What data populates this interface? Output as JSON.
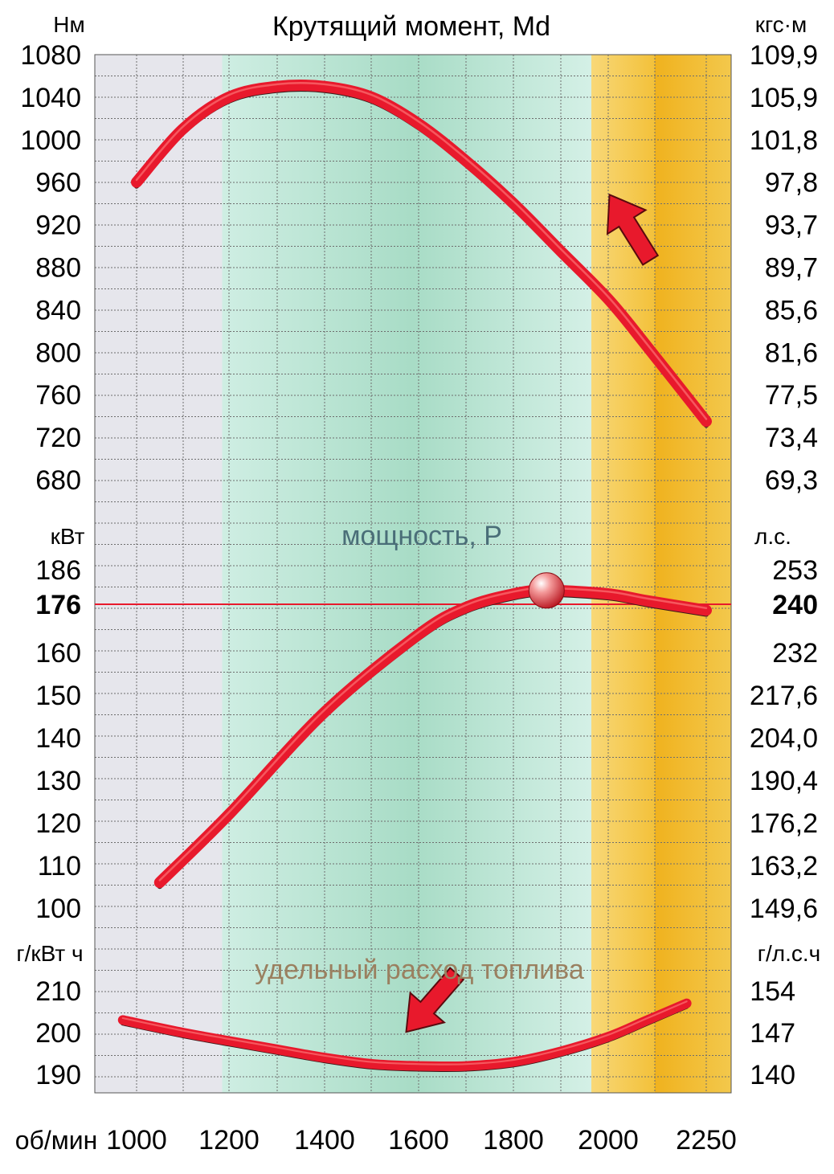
{
  "chart_data": [
    {
      "type": "line",
      "title": "Крутящий момент, Md",
      "ylabel_left": "Нм",
      "ylabel_right": "кгс·м",
      "y_ticks_left": [
        "1080",
        "1040",
        "1000",
        "960",
        "920",
        "880",
        "840",
        "800",
        "760",
        "720",
        "680"
      ],
      "y_ticks_right": [
        "109,9",
        "105,9",
        "101,8",
        "97,8",
        "93,7",
        "89,7",
        "85,6",
        "81,6",
        "77,5",
        "73,4",
        "69,3"
      ],
      "ylim": [
        680,
        1080
      ],
      "x": [
        1000,
        1100,
        1200,
        1300,
        1400,
        1500,
        1600,
        1700,
        1800,
        1900,
        2000,
        2100,
        2250
      ],
      "values": [
        960,
        1010,
        1040,
        1050,
        1050,
        1040,
        1015,
        980,
        940,
        895,
        850,
        805,
        735
      ]
    },
    {
      "type": "line",
      "title": "мощность, P",
      "ylabel_left": "кВт",
      "ylabel_right": "л.с.",
      "y_ticks_left": [
        "186",
        "176",
        "160",
        "150",
        "140",
        "130",
        "120",
        "110",
        "100"
      ],
      "y_ticks_right": [
        "253",
        "240",
        "232",
        "217,6",
        "204,0",
        "190,4",
        "176,2",
        "163,2",
        "149,6"
      ],
      "highlight": {
        "left": "176",
        "right": "240"
      },
      "x": [
        1050,
        1200,
        1400,
        1600,
        1700,
        1800,
        1870,
        2000,
        2100,
        2250
      ],
      "values": [
        106,
        122,
        146,
        166,
        175,
        179,
        180,
        179,
        177,
        174
      ],
      "marker": {
        "x": 1870,
        "y": 180
      }
    },
    {
      "type": "line",
      "title": "удельный расход топлива",
      "ylabel_left": "г/кВт ч",
      "ylabel_right": "г/л.с.ч",
      "y_ticks_left": [
        "210",
        "200",
        "190"
      ],
      "y_ticks_right": [
        "154",
        "147",
        "140"
      ],
      "ylim": [
        190,
        210
      ],
      "x": [
        970,
        1100,
        1200,
        1300,
        1400,
        1500,
        1600,
        1700,
        1800,
        1900,
        2000,
        2100,
        2200
      ],
      "values": [
        203,
        200,
        198,
        196,
        194,
        192.5,
        192,
        192,
        193,
        195.5,
        199,
        203,
        207
      ]
    }
  ],
  "x_axis": {
    "label": "об/мин",
    "ticks": [
      "1000",
      "1200",
      "1400",
      "1600",
      "1800",
      "2000",
      "2250"
    ]
  },
  "colors": {
    "curve": "#e8192c",
    "curve_edge": "#3a1a1a",
    "highlight_line": "#e8192c",
    "grid": "#6e6e6e",
    "band_gray": "#e4e4ea",
    "band_green": "#bfe6d6",
    "band_yellow": "#f5c84a",
    "band_orange": "#f0b21e",
    "arrow": "#e8192c"
  },
  "icons": [
    "arrow-up-icon",
    "arrow-down-icon",
    "max-power-marker"
  ]
}
